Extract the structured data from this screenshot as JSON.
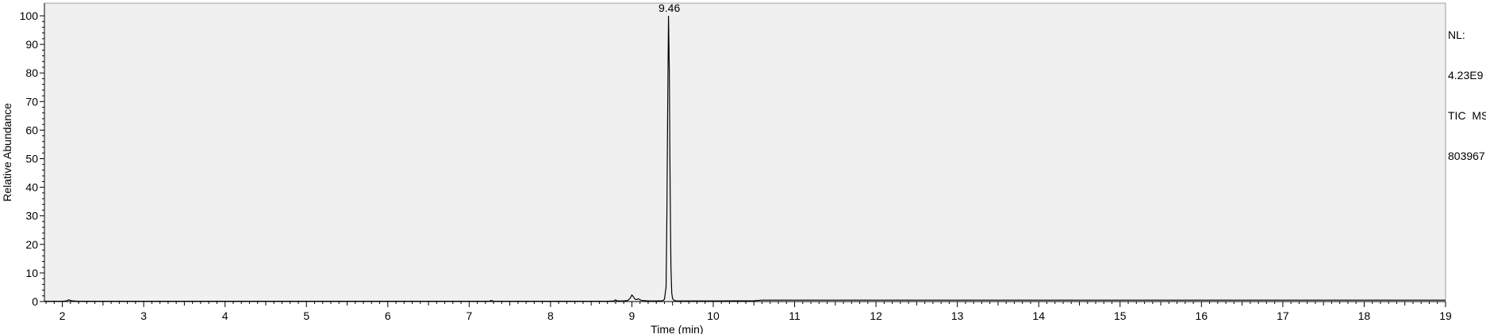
{
  "chart_data": {
    "type": "line",
    "title": "",
    "xlabel": "Time (min)",
    "ylabel": "Relative Abundance",
    "xlim": [
      1.78,
      19.0
    ],
    "ylim": [
      0,
      100
    ],
    "x_ticks": [
      2,
      3,
      4,
      5,
      6,
      7,
      8,
      9,
      10,
      11,
      12,
      13,
      14,
      15,
      16,
      17,
      18,
      19
    ],
    "y_ticks": [
      0,
      10,
      20,
      30,
      40,
      50,
      60,
      70,
      80,
      90,
      100
    ],
    "grid": false,
    "plot_background": "#f0f0f0",
    "line_color": "#000000",
    "annotations": [
      {
        "x": 9.46,
        "y": 100,
        "text": "9.46"
      }
    ],
    "series": [
      {
        "x": [
          1.78,
          2.0,
          2.05,
          2.08,
          2.1,
          2.13,
          2.2,
          3.0,
          4.0,
          5.0,
          6.0,
          7.0,
          7.25,
          7.27,
          7.3,
          8.0,
          8.7,
          8.78,
          8.8,
          8.82,
          8.9,
          8.95,
          8.98,
          9.0,
          9.02,
          9.04,
          9.06,
          9.08,
          9.1,
          9.12,
          9.2,
          9.3,
          9.38,
          9.4,
          9.42,
          9.43,
          9.44,
          9.45,
          9.46,
          9.465,
          9.47,
          9.48,
          9.49,
          9.5,
          9.52,
          9.55,
          9.6,
          10.0,
          10.5,
          10.6,
          11.0,
          12.0,
          13.0,
          14.0,
          15.0,
          16.0,
          17.0,
          18.0,
          19.0
        ],
        "y": [
          0.1,
          0.1,
          0.2,
          0.6,
          0.4,
          0.2,
          0.1,
          0.1,
          0.1,
          0.1,
          0.1,
          0.1,
          0.1,
          0.4,
          0.1,
          0.1,
          0.1,
          0.2,
          0.6,
          0.2,
          0.2,
          0.4,
          1.2,
          2.3,
          1.6,
          0.8,
          0.7,
          1.0,
          0.6,
          0.4,
          0.2,
          0.2,
          0.3,
          0.8,
          5.0,
          30.0,
          68.0,
          100.0,
          81.0,
          60.0,
          40.0,
          12.0,
          3.0,
          1.0,
          0.4,
          0.2,
          0.2,
          0.2,
          0.3,
          0.5,
          0.5,
          0.5,
          0.5,
          0.5,
          0.5,
          0.5,
          0.5,
          0.5,
          0.5
        ]
      }
    ]
  },
  "info": {
    "lines": [
      "NL:",
      "4.23E9",
      "TIC  MS",
      "803967"
    ]
  }
}
